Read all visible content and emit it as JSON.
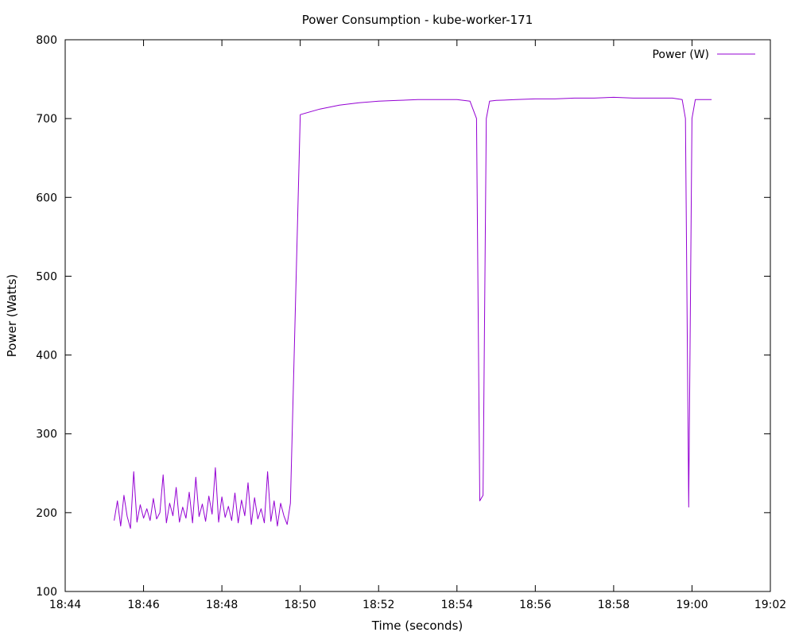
{
  "chart_data": {
    "type": "line",
    "title": "Power Consumption - kube-worker-171",
    "xlabel": "Time (seconds)",
    "ylabel": "Power (Watts)",
    "xlim": [
      "18:44",
      "19:02"
    ],
    "ylim": [
      100,
      800
    ],
    "x_ticks": [
      "18:44",
      "18:46",
      "18:48",
      "18:50",
      "18:52",
      "18:54",
      "18:56",
      "18:58",
      "19:00",
      "19:02"
    ],
    "y_ticks": [
      100,
      200,
      300,
      400,
      500,
      600,
      700,
      800
    ],
    "grid": false,
    "legend_position": "top-right",
    "series_color": "#9400d3",
    "series": [
      {
        "name": "Power (W)",
        "color": "#9400d3",
        "x": [
          "18:45:15",
          "18:45:20",
          "18:45:25",
          "18:45:30",
          "18:45:35",
          "18:45:40",
          "18:45:45",
          "18:45:50",
          "18:45:55",
          "18:46:00",
          "18:46:05",
          "18:46:10",
          "18:46:15",
          "18:46:20",
          "18:46:25",
          "18:46:30",
          "18:46:35",
          "18:46:40",
          "18:46:45",
          "18:46:50",
          "18:46:55",
          "18:47:00",
          "18:47:05",
          "18:47:10",
          "18:47:15",
          "18:47:20",
          "18:47:25",
          "18:47:30",
          "18:47:35",
          "18:47:40",
          "18:47:45",
          "18:47:50",
          "18:47:55",
          "18:48:00",
          "18:48:05",
          "18:48:10",
          "18:48:15",
          "18:48:20",
          "18:48:25",
          "18:48:30",
          "18:48:35",
          "18:48:40",
          "18:48:45",
          "18:48:50",
          "18:48:55",
          "18:49:00",
          "18:49:05",
          "18:49:10",
          "18:49:15",
          "18:49:20",
          "18:49:25",
          "18:49:30",
          "18:49:35",
          "18:49:40",
          "18:49:45",
          "18:50:00",
          "18:50:30",
          "18:51:00",
          "18:51:30",
          "18:52:00",
          "18:52:30",
          "18:53:00",
          "18:53:30",
          "18:54:00",
          "18:54:20",
          "18:54:30",
          "18:54:35",
          "18:54:40",
          "18:54:45",
          "18:54:50",
          "18:55:00",
          "18:55:30",
          "18:56:00",
          "18:56:30",
          "18:57:00",
          "18:57:30",
          "18:58:00",
          "18:58:30",
          "18:59:00",
          "18:59:30",
          "18:59:45",
          "18:59:50",
          "18:59:55",
          "19:00:00",
          "19:00:05",
          "19:00:15",
          "19:00:30"
        ],
        "y": [
          190,
          215,
          183,
          222,
          195,
          180,
          252,
          188,
          210,
          193,
          205,
          190,
          218,
          192,
          200,
          248,
          187,
          212,
          196,
          232,
          188,
          207,
          193,
          226,
          187,
          245,
          195,
          211,
          189,
          221,
          198,
          257,
          188,
          220,
          194,
          208,
          190,
          225,
          187,
          216,
          196,
          238,
          185,
          219,
          192,
          205,
          187,
          252,
          189,
          215,
          183,
          212,
          196,
          185,
          212,
          705,
          712,
          717,
          720,
          722,
          723,
          724,
          724,
          724,
          722,
          700,
          215,
          222,
          700,
          722,
          723,
          724,
          725,
          725,
          726,
          726,
          727,
          726,
          726,
          726,
          724,
          700,
          207,
          700,
          724,
          724,
          724
        ]
      }
    ]
  }
}
